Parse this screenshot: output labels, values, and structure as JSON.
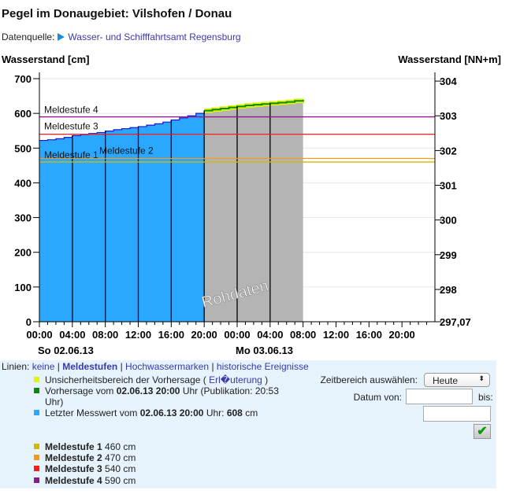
{
  "header": {
    "title": "Pegel im Donaugebiet:  Vilshofen / Donau",
    "source_label": "Datenquelle:",
    "source_link": "Wasser- und Schifffahrtsamt Regensburg"
  },
  "colors": {
    "measured": "#2aa8ff",
    "forecast": "#0a8a0a",
    "uncertainty": "#e0f500",
    "raw": "#b4b4b4",
    "ms1": "#d4b800",
    "ms2": "#f29a1a",
    "ms3": "#ff1a1a",
    "ms4": "#8a1a8a"
  },
  "chart_data": {
    "type": "area",
    "ylabel_left": "Wasserstand [cm]",
    "ylabel_right": "Wasserstand [NN+m]",
    "ylim": [
      0,
      700
    ],
    "yticks": [
      0,
      100,
      200,
      300,
      400,
      500,
      600,
      700
    ],
    "right_ticks": [
      "297,07",
      "298",
      "299",
      "300",
      "301",
      "302",
      "303",
      "304"
    ],
    "right_offset_m": 297.07,
    "xlim_hours": [
      0,
      48
    ],
    "xtick_labels": [
      "00:00",
      "04:00",
      "08:00",
      "12:00",
      "16:00",
      "20:00",
      "00:00",
      "04:00",
      "08:00",
      "12:00",
      "16:00",
      "20:00"
    ],
    "date_labels": [
      {
        "hour": 0,
        "label": "So 02.06.13"
      },
      {
        "hour": 24,
        "label": "Mo 03.06.13"
      }
    ],
    "measured": {
      "hours": [
        0,
        1,
        2,
        3,
        4,
        5,
        6,
        7,
        8,
        9,
        10,
        11,
        12,
        13,
        14,
        15,
        16,
        17,
        18,
        19,
        20
      ],
      "values": [
        522,
        524,
        527,
        531,
        536,
        539,
        542,
        545,
        549,
        553,
        556,
        559,
        562,
        566,
        570,
        575,
        581,
        587,
        593,
        600,
        608
      ]
    },
    "forecast": {
      "hours": [
        20,
        21,
        22,
        23,
        24,
        25,
        26,
        27,
        28,
        29,
        30,
        31,
        32
      ],
      "values": [
        608,
        611,
        614,
        617,
        620,
        623,
        625,
        627,
        629,
        631,
        633,
        636,
        639
      ]
    },
    "uncertainty_halfwidth_cm": 3,
    "raw_data_label": "Rohdaten",
    "thresholds": [
      {
        "name": "Meldestufe 1",
        "value": 460
      },
      {
        "name": "Meldestufe 2",
        "value": 470
      },
      {
        "name": "Meldestufe 3",
        "value": 540
      },
      {
        "name": "Meldestufe 4",
        "value": 590
      }
    ]
  },
  "lines_bar": {
    "label": "Linien:",
    "none": "keine",
    "sep": "|",
    "levels": "Meldestufen",
    "marks": "Hochwassermarken",
    "history": "historische Ereignisse"
  },
  "legend": {
    "uncertainty": "Unsicherheitsbereich der Vorhersage (",
    "uncertainty_link": "Erl�uterung",
    "uncertainty_close": ")",
    "forecast_pre": "Vorhersage vom",
    "forecast_date": "02.06.13 20:00",
    "forecast_post": "Uhr (Publikation: 20:53 Uhr)",
    "measured_pre": "Letzter Messwert vom",
    "measured_date": "02.06.13 20:00",
    "measured_mid": "Uhr:",
    "measured_value": "608",
    "measured_unit": "cm",
    "levels": [
      {
        "name": "Meldestufe 1",
        "value": "460 cm"
      },
      {
        "name": "Meldestufe 2",
        "value": "470 cm"
      },
      {
        "name": "Meldestufe 3",
        "value": "540 cm"
      },
      {
        "name": "Meldestufe 4",
        "value": "590 cm"
      }
    ]
  },
  "form": {
    "range_label": "Zeitbereich auswählen:",
    "range_value": "Heute",
    "from_label": "Datum von:",
    "to_label": "bis:",
    "from_value": "",
    "to_value": ""
  }
}
